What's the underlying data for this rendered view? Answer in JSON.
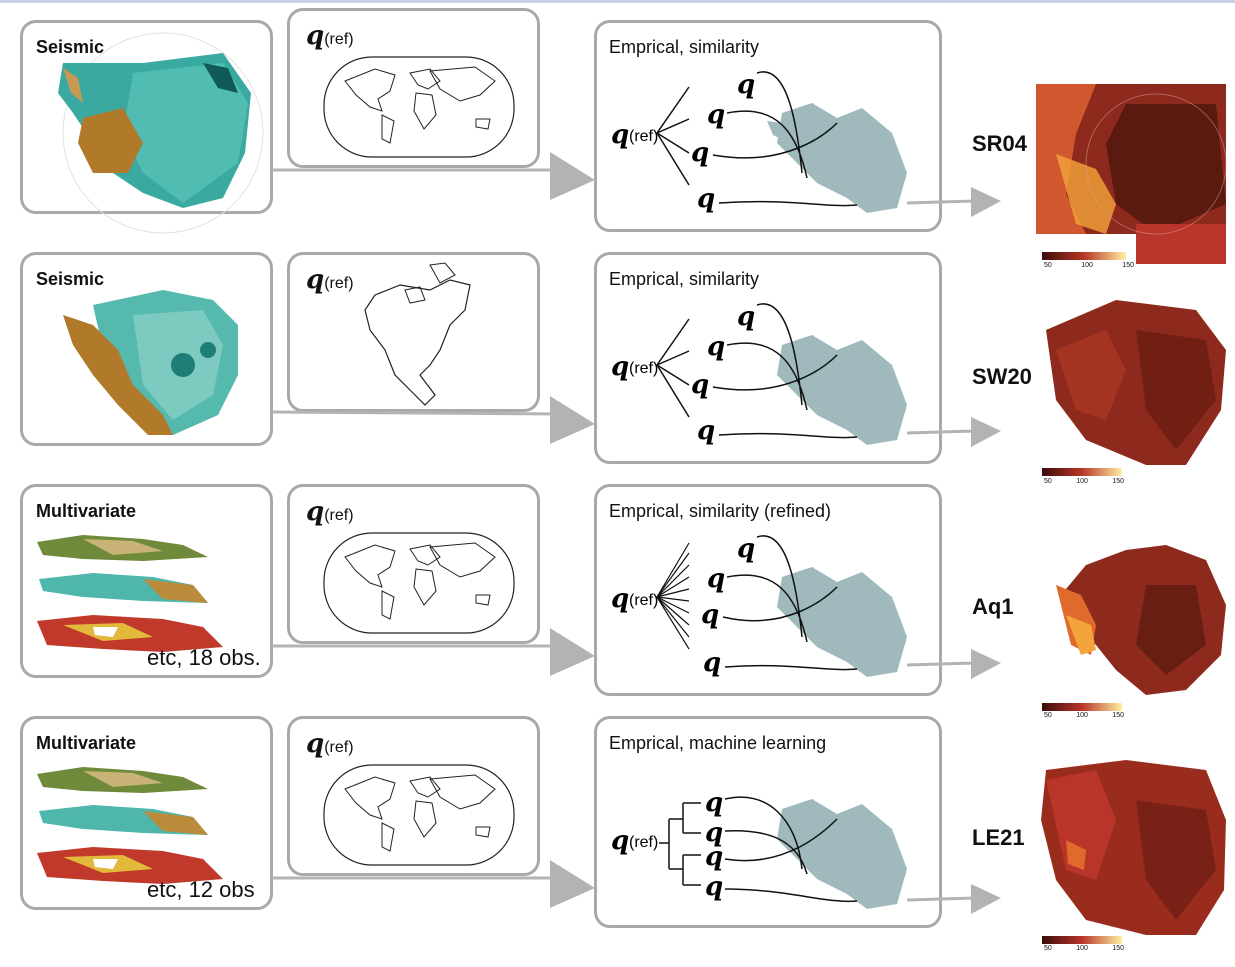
{
  "rows": [
    {
      "input_label": "Seismic",
      "input_note": "",
      "ref_symbol": "q",
      "ref_suffix": "(ref)",
      "method_title": "Emprical, similarity",
      "output_label": "SR04"
    },
    {
      "input_label": "Seismic",
      "input_note": "",
      "ref_symbol": "q",
      "ref_suffix": "(ref)",
      "method_title": "Emprical, similarity",
      "output_label": "SW20"
    },
    {
      "input_label": "Multivariate",
      "input_note": "etc, 18 obs.",
      "ref_symbol": "q",
      "ref_suffix": "(ref)",
      "method_title": "Emprical, similarity (refined)",
      "output_label": "Aq1"
    },
    {
      "input_label": "Multivariate",
      "input_note": "etc, 12 obs",
      "ref_symbol": "q",
      "ref_suffix": "(ref)",
      "method_title": "Emprical, machine learning",
      "output_label": "LE21"
    }
  ],
  "colorbar_ticks": [
    "50",
    "100",
    "150"
  ],
  "colors": {
    "box_border": "#a9a9a9",
    "arrow": "#b3b3b3",
    "antarctica": "#9fb9bd",
    "seismic_fast": "#1f8f8a",
    "seismic_slow": "#b07a2a",
    "heat_dark": "#6b1d12",
    "heat_mid": "#b9352a",
    "heat_hot": "#f3a43a"
  }
}
